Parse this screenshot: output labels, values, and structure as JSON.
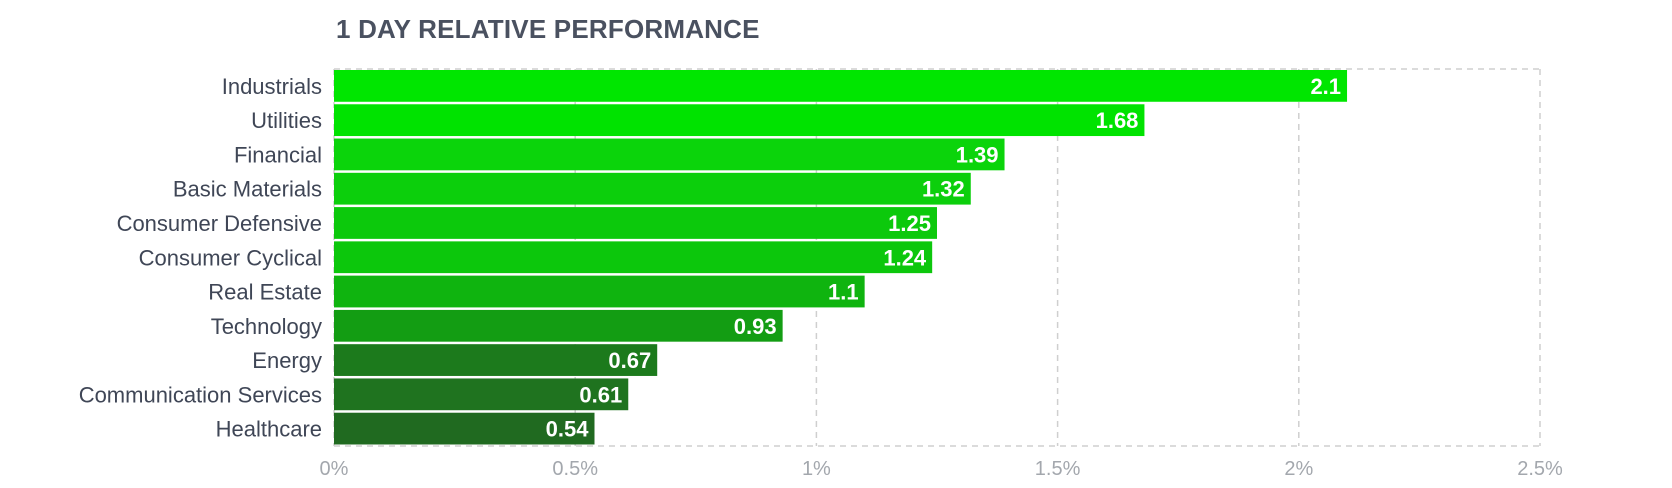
{
  "chart_data": {
    "type": "bar",
    "orientation": "horizontal",
    "title": "1 DAY RELATIVE PERFORMANCE",
    "categories": [
      "Industrials",
      "Utilities",
      "Financial",
      "Basic Materials",
      "Consumer Defensive",
      "Consumer Cyclical",
      "Real Estate",
      "Technology",
      "Energy",
      "Communication Services",
      "Healthcare"
    ],
    "values": [
      2.1,
      1.68,
      1.39,
      1.32,
      1.25,
      1.24,
      1.1,
      0.93,
      0.67,
      0.61,
      0.54
    ],
    "value_labels": [
      "2.1",
      "1.68",
      "1.39",
      "1.32",
      "1.25",
      "1.24",
      "1.1",
      "0.93",
      "0.67",
      "0.61",
      "0.54"
    ],
    "bar_colors": [
      "#00e600",
      "#00e300",
      "#0bd40b",
      "#0ccf0c",
      "#0cc90c",
      "#0cc70c",
      "#0fb40f",
      "#139d13",
      "#1c7a1c",
      "#1f731f",
      "#206a20"
    ],
    "xlim": [
      0,
      2.5
    ],
    "x_ticks": [
      0,
      0.5,
      1,
      1.5,
      2,
      2.5
    ],
    "x_tick_labels": [
      "0%",
      "0.5%",
      "1%",
      "1.5%",
      "2%",
      "2.5%"
    ],
    "grid": true,
    "xlabel": "",
    "ylabel": ""
  }
}
